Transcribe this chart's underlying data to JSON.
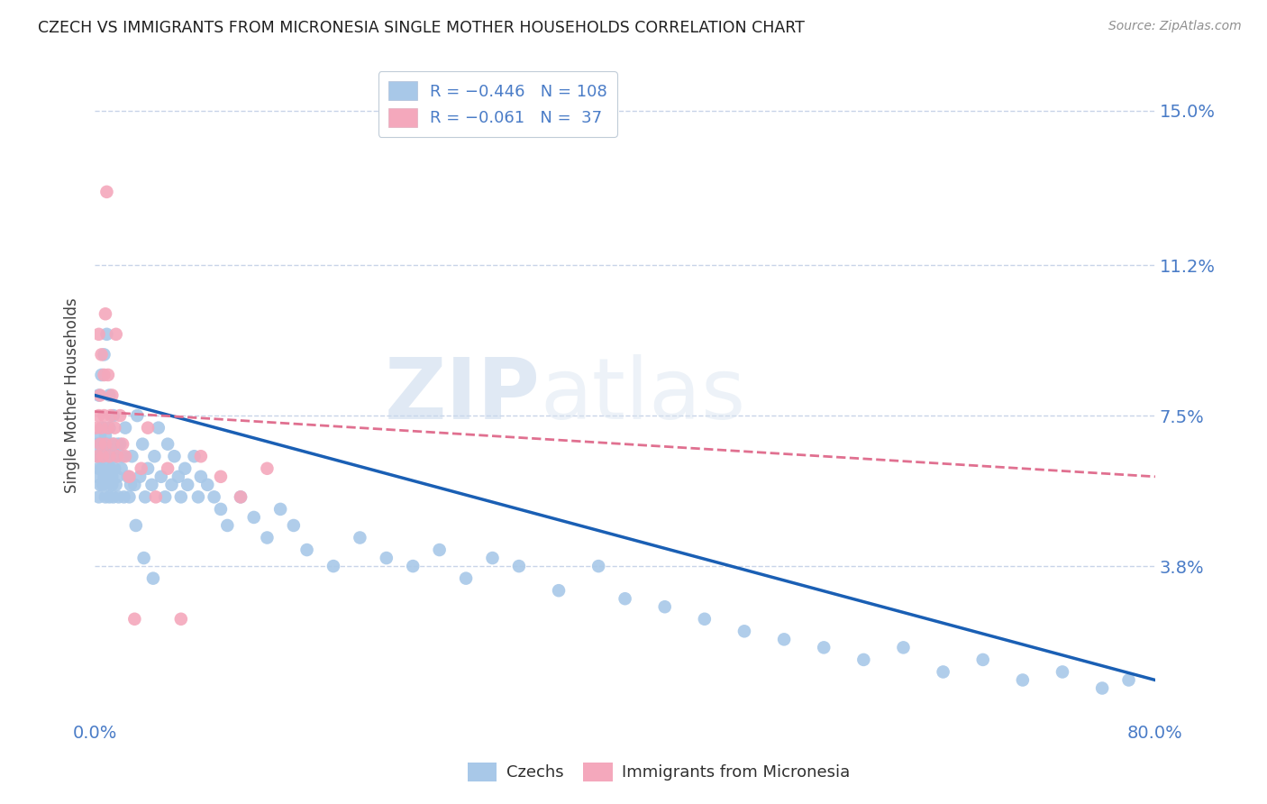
{
  "title": "CZECH VS IMMIGRANTS FROM MICRONESIA SINGLE MOTHER HOUSEHOLDS CORRELATION CHART",
  "source": "Source: ZipAtlas.com",
  "ylabel": "Single Mother Households",
  "xlim": [
    0.0,
    0.8
  ],
  "ylim": [
    0.0,
    0.16
  ],
  "yticks": [
    0.038,
    0.075,
    0.112,
    0.15
  ],
  "ytick_labels": [
    "3.8%",
    "7.5%",
    "11.2%",
    "15.0%"
  ],
  "xticks": [
    0.0,
    0.2,
    0.4,
    0.6,
    0.8
  ],
  "xtick_labels": [
    "0.0%",
    "",
    "",
    "",
    "80.0%"
  ],
  "watermark": "ZIPatlas",
  "czech_color": "#a8c8e8",
  "micronesia_color": "#f4a8bc",
  "czech_line_color": "#1a5fb4",
  "micronesia_line_color": "#e07090",
  "axis_color": "#4a7cc7",
  "grid_color": "#c8d4e8",
  "title_color": "#202020",
  "background_color": "#ffffff",
  "czech_x": [
    0.001,
    0.002,
    0.002,
    0.003,
    0.003,
    0.004,
    0.004,
    0.005,
    0.005,
    0.006,
    0.006,
    0.006,
    0.007,
    0.007,
    0.008,
    0.008,
    0.009,
    0.009,
    0.01,
    0.01,
    0.01,
    0.011,
    0.011,
    0.012,
    0.012,
    0.013,
    0.013,
    0.014,
    0.014,
    0.015,
    0.016,
    0.016,
    0.017,
    0.018,
    0.019,
    0.02,
    0.022,
    0.023,
    0.025,
    0.027,
    0.028,
    0.03,
    0.032,
    0.034,
    0.036,
    0.038,
    0.04,
    0.043,
    0.045,
    0.048,
    0.05,
    0.053,
    0.055,
    0.058,
    0.06,
    0.063,
    0.065,
    0.068,
    0.07,
    0.075,
    0.078,
    0.08,
    0.085,
    0.09,
    0.095,
    0.1,
    0.11,
    0.12,
    0.13,
    0.14,
    0.15,
    0.16,
    0.18,
    0.2,
    0.22,
    0.24,
    0.26,
    0.28,
    0.3,
    0.32,
    0.35,
    0.38,
    0.4,
    0.43,
    0.46,
    0.49,
    0.52,
    0.55,
    0.58,
    0.61,
    0.64,
    0.67,
    0.7,
    0.73,
    0.76,
    0.78,
    0.003,
    0.005,
    0.007,
    0.009,
    0.011,
    0.014,
    0.017,
    0.021,
    0.026,
    0.031,
    0.037,
    0.044
  ],
  "czech_y": [
    0.065,
    0.06,
    0.068,
    0.055,
    0.062,
    0.058,
    0.07,
    0.062,
    0.065,
    0.058,
    0.065,
    0.072,
    0.06,
    0.068,
    0.055,
    0.07,
    0.062,
    0.065,
    0.058,
    0.06,
    0.068,
    0.055,
    0.072,
    0.062,
    0.065,
    0.058,
    0.06,
    0.055,
    0.068,
    0.062,
    0.058,
    0.065,
    0.06,
    0.055,
    0.068,
    0.062,
    0.055,
    0.072,
    0.06,
    0.058,
    0.065,
    0.058,
    0.075,
    0.06,
    0.068,
    0.055,
    0.062,
    0.058,
    0.065,
    0.072,
    0.06,
    0.055,
    0.068,
    0.058,
    0.065,
    0.06,
    0.055,
    0.062,
    0.058,
    0.065,
    0.055,
    0.06,
    0.058,
    0.055,
    0.052,
    0.048,
    0.055,
    0.05,
    0.045,
    0.052,
    0.048,
    0.042,
    0.038,
    0.045,
    0.04,
    0.038,
    0.042,
    0.035,
    0.04,
    0.038,
    0.032,
    0.038,
    0.03,
    0.028,
    0.025,
    0.022,
    0.02,
    0.018,
    0.015,
    0.018,
    0.012,
    0.015,
    0.01,
    0.012,
    0.008,
    0.01,
    0.08,
    0.085,
    0.09,
    0.095,
    0.08,
    0.075,
    0.068,
    0.065,
    0.055,
    0.048,
    0.04,
    0.035
  ],
  "micronesia_x": [
    0.001,
    0.002,
    0.003,
    0.003,
    0.004,
    0.004,
    0.005,
    0.005,
    0.006,
    0.007,
    0.007,
    0.008,
    0.008,
    0.009,
    0.01,
    0.01,
    0.011,
    0.012,
    0.013,
    0.014,
    0.015,
    0.016,
    0.017,
    0.019,
    0.021,
    0.023,
    0.026,
    0.03,
    0.035,
    0.04,
    0.046,
    0.055,
    0.065,
    0.08,
    0.095,
    0.11,
    0.13
  ],
  "micronesia_y": [
    0.072,
    0.065,
    0.075,
    0.095,
    0.068,
    0.08,
    0.072,
    0.09,
    0.065,
    0.075,
    0.085,
    0.068,
    0.1,
    0.13,
    0.072,
    0.085,
    0.065,
    0.075,
    0.08,
    0.068,
    0.072,
    0.095,
    0.065,
    0.075,
    0.068,
    0.065,
    0.06,
    0.025,
    0.062,
    0.072,
    0.055,
    0.062,
    0.025,
    0.065,
    0.06,
    0.055,
    0.062
  ],
  "czech_line_x0": 0.0,
  "czech_line_x1": 0.8,
  "czech_line_y0": 0.08,
  "czech_line_y1": 0.01,
  "mic_line_x0": 0.0,
  "mic_line_x1": 0.8,
  "mic_line_y0": 0.076,
  "mic_line_y1": 0.06
}
